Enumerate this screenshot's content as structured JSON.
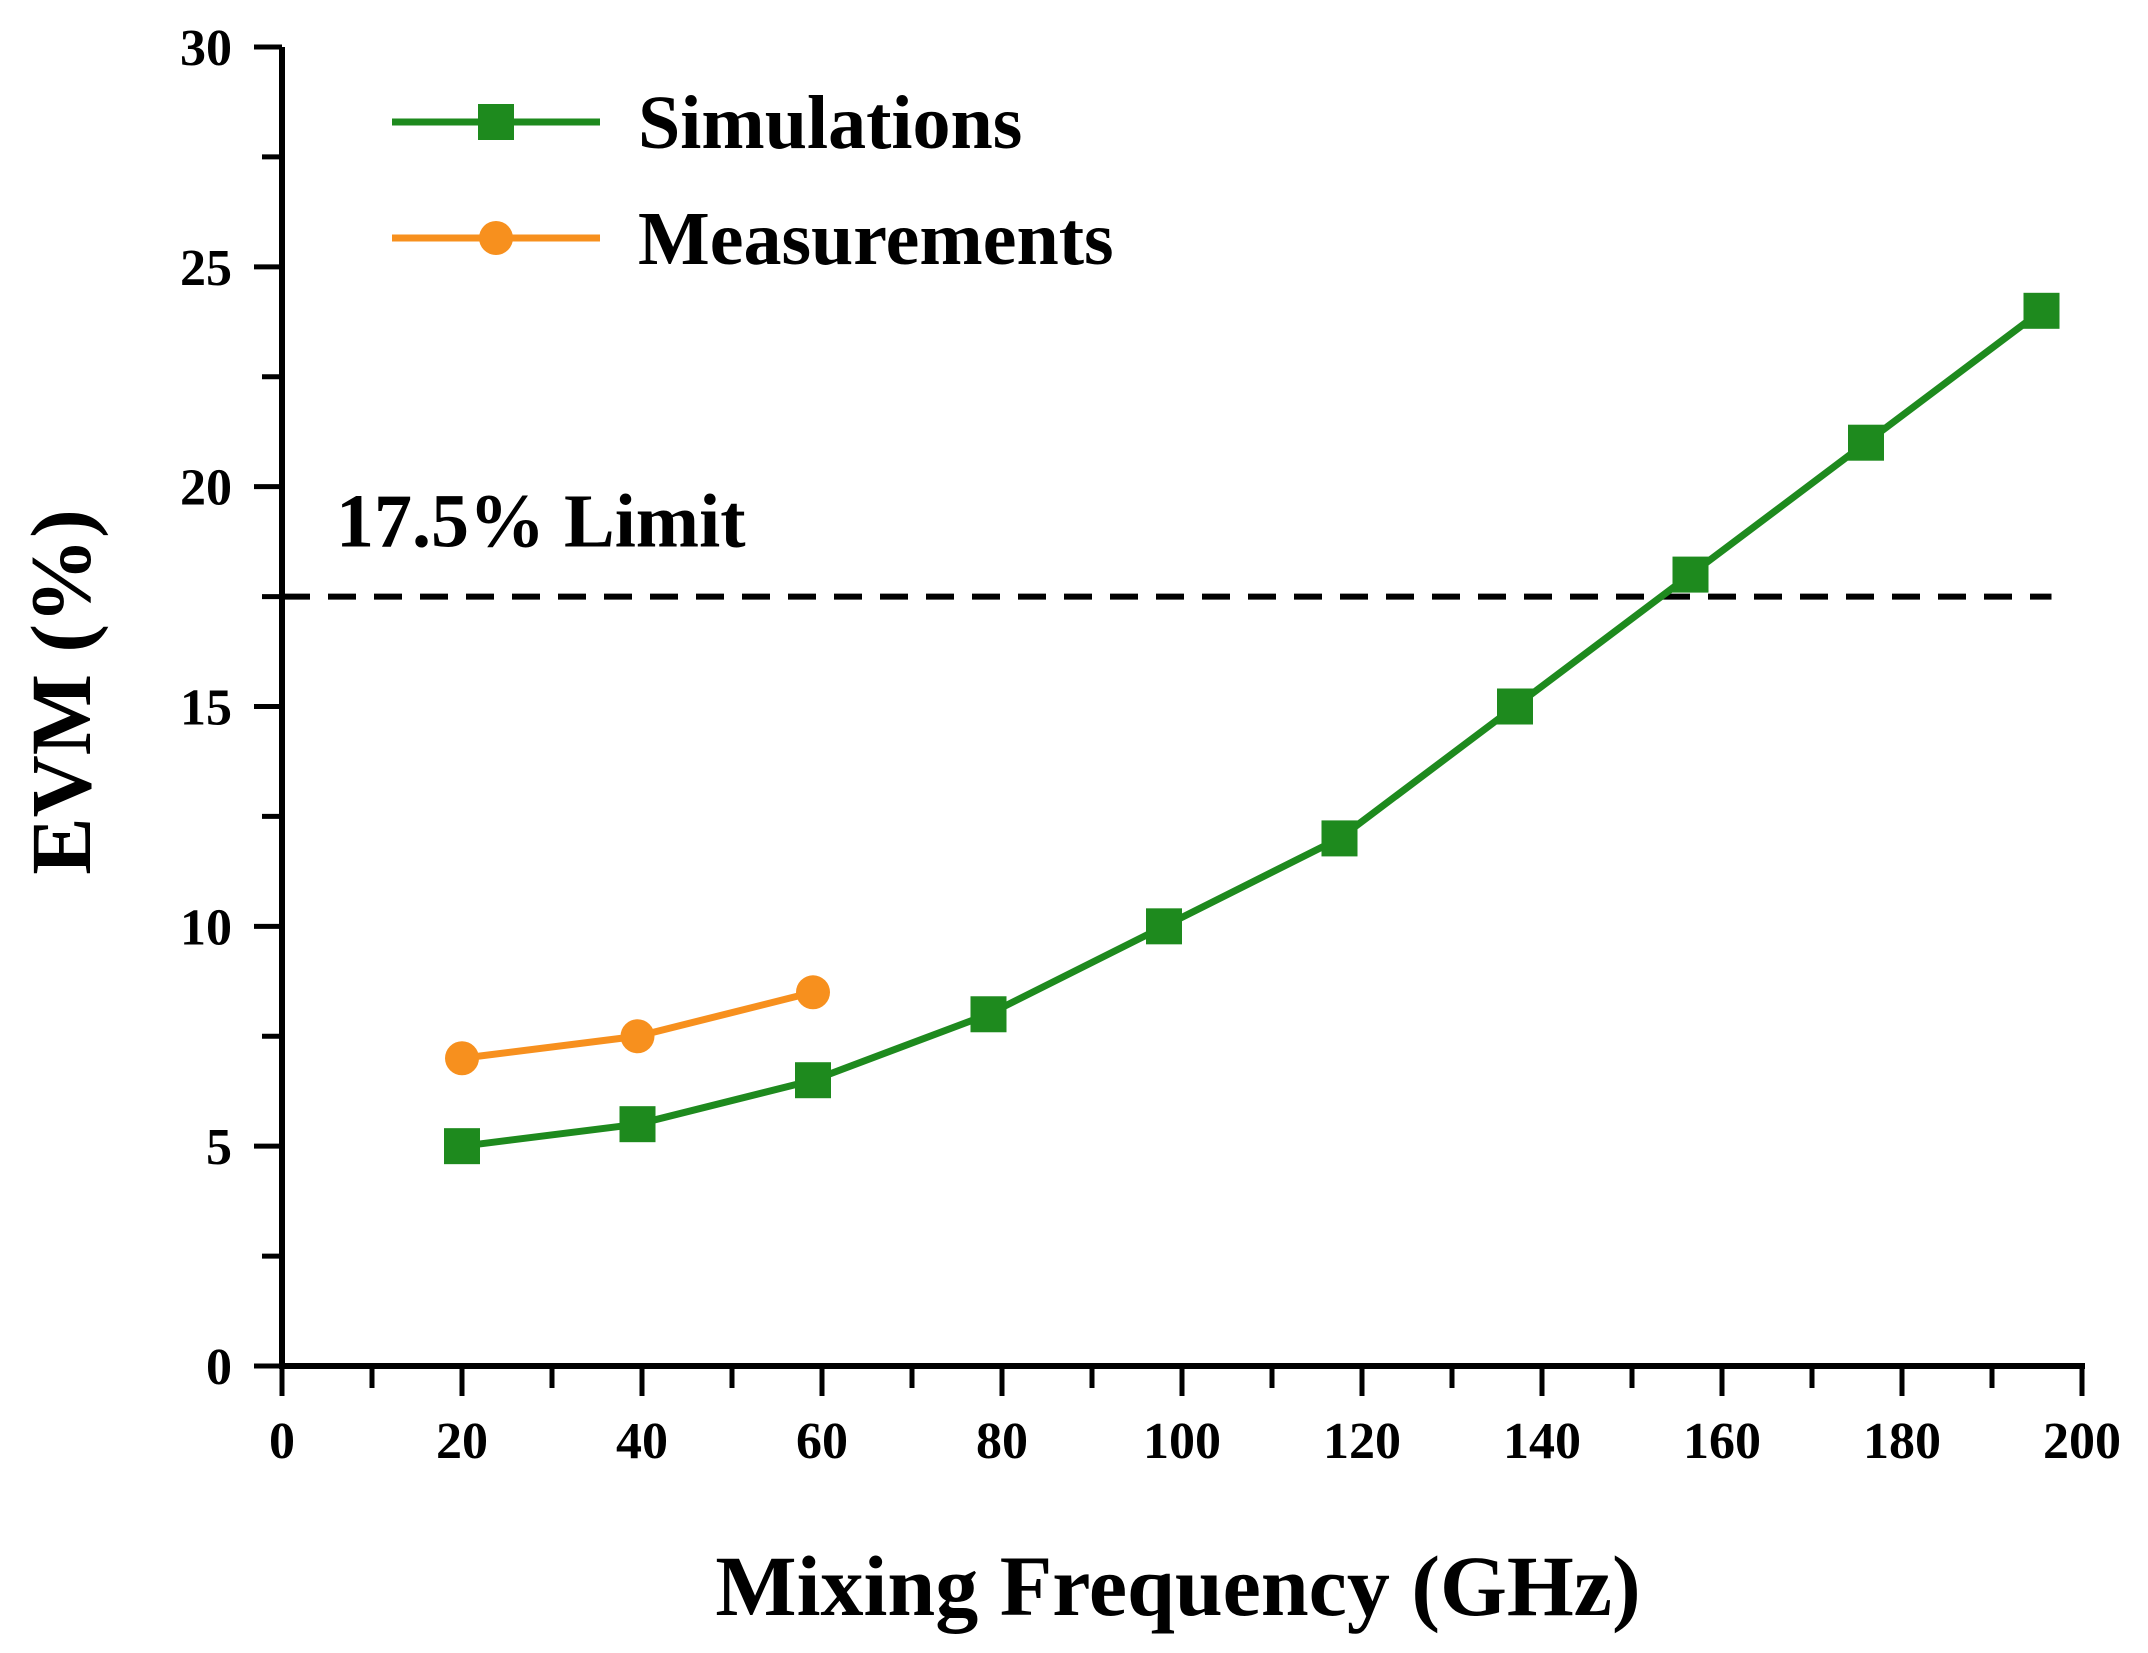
{
  "chart_data": {
    "type": "line",
    "title": "",
    "xlabel": "Mixing Frequency (GHz)",
    "ylabel": "EVM (%)",
    "xlim": [
      0,
      200
    ],
    "ylim": [
      0,
      30
    ],
    "x_major_ticks": [
      0,
      20,
      40,
      60,
      80,
      100,
      120,
      140,
      160,
      180,
      200
    ],
    "x_minor_step": 10,
    "y_major_ticks": [
      0,
      5,
      10,
      15,
      20,
      25,
      30
    ],
    "y_minor_step": 2.5,
    "grid": false,
    "legend_position": "top-left",
    "series": [
      {
        "name": "Simulations",
        "color": "#1e8a1e",
        "marker": "square",
        "x": [
          20,
          39.5,
          59,
          78.5,
          98,
          117.5,
          137,
          156.5,
          176,
          195.5
        ],
        "values": [
          5.0,
          5.5,
          6.5,
          8.0,
          10.0,
          12.0,
          15.0,
          18.0,
          21.0,
          24.0
        ]
      },
      {
        "name": "Measurements",
        "color": "#f7901e",
        "marker": "circle",
        "x": [
          20,
          39.5,
          59
        ],
        "values": [
          7.0,
          7.5,
          8.5
        ]
      }
    ],
    "annotations": [
      {
        "type": "hline",
        "y": 17.5,
        "x_range": [
          0,
          195.5
        ],
        "style": "dashed",
        "color": "#000000",
        "label": "17.5% Limit"
      }
    ]
  }
}
